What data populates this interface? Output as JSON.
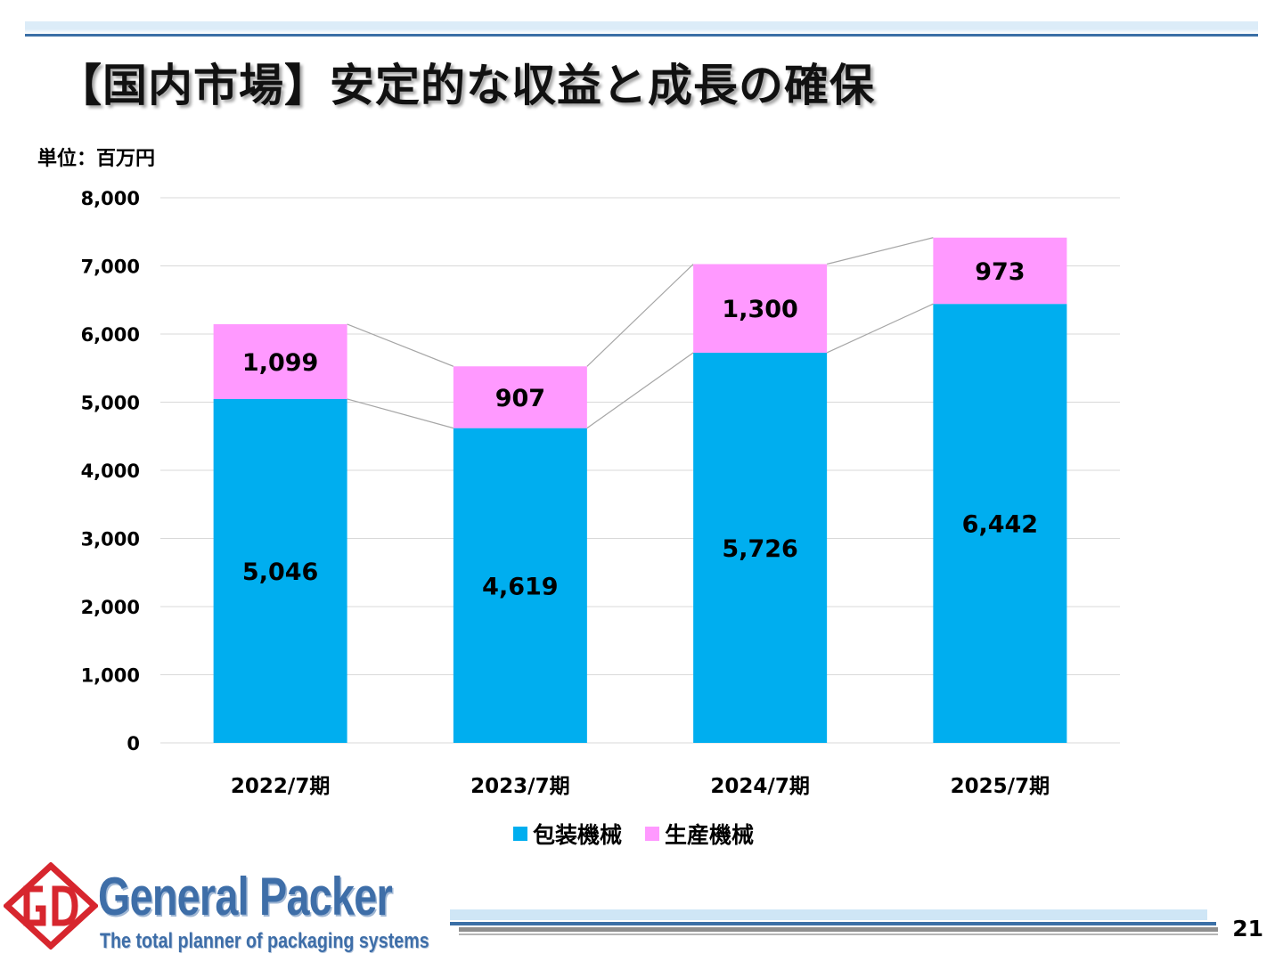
{
  "header": {
    "title": "【国内市場】安定的な収益と成長の確保"
  },
  "unit_label": "単位：百万円",
  "colors": {
    "packaging": "#00AEEF",
    "production": "#FF99FF",
    "accent": "#3A6FA6"
  },
  "chart_data": {
    "type": "bar",
    "stacked": true,
    "categories": [
      "2022/7期",
      "2023/7期",
      "2024/7期",
      "2025/7期"
    ],
    "series": [
      {
        "name": "包装機械",
        "values": [
          5046,
          4619,
          5726,
          6442
        ]
      },
      {
        "name": "生産機械",
        "values": [
          1099,
          907,
          1300,
          973
        ]
      }
    ],
    "data_labels": [
      [
        "5,046",
        "4,619",
        "5,726",
        "6,442"
      ],
      [
        "1,099",
        "907",
        "1,300",
        "973"
      ]
    ],
    "ylim": [
      0,
      8000
    ],
    "yticks": [
      "0",
      "1,000",
      "2,000",
      "3,000",
      "4,000",
      "5,000",
      "6,000",
      "7,000",
      "8,000"
    ],
    "grid": true,
    "series_lines": true,
    "legend_position": "bottom"
  },
  "footer": {
    "company_name": "General Packer",
    "tagline": "The total planner of packaging systems",
    "page_number": "21"
  }
}
